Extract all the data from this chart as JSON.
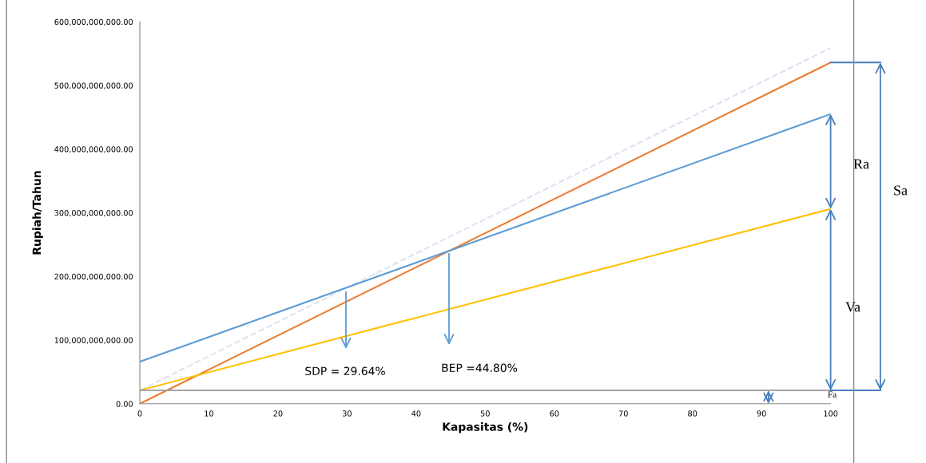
{
  "chart_data": {
    "type": "line",
    "xlabel": "Kapasitas (%)",
    "ylabel": "Rupiah/Tahun",
    "x": [
      0,
      100
    ],
    "series": [
      {
        "color": "#dae3f3",
        "values": [
          21000000000,
          559000000000
        ],
        "line_style": "dashed"
      },
      {
        "color": "#ed7d31",
        "values": [
          0,
          536000000000
        ]
      },
      {
        "color": "#5b9bd5",
        "values": [
          66000000000,
          455000000000
        ]
      },
      {
        "color": "#ffc000",
        "values": [
          21000000000,
          306000000000
        ]
      },
      {
        "color": "#a5a5a5",
        "values": [
          21000000000,
          21000000000
        ]
      }
    ],
    "xlim": [
      0,
      100
    ],
    "xticks": [
      0,
      10,
      20,
      30,
      40,
      50,
      60,
      70,
      80,
      90,
      100
    ],
    "ylim": [
      0,
      600000000000
    ],
    "yticks": [
      {
        "value": 0,
        "label": "0.00"
      },
      {
        "value": 100000000000,
        "label": "100,000,000,000.00"
      },
      {
        "value": 200000000000,
        "label": "200,000,000,000.00"
      },
      {
        "value": 300000000000,
        "label": "300,000,000,000.00"
      },
      {
        "value": 400000000000,
        "label": "400,000,000,000.00"
      },
      {
        "value": 500000000000,
        "label": "500,000,000,000.00"
      },
      {
        "value": 600000000000,
        "label": "600,000,000,000.00"
      }
    ],
    "annotations": [
      "SDP = 29.64%",
      "BEP =44.80%",
      "Ra",
      "Va",
      "Sa",
      "Fa"
    ],
    "grid": false,
    "legend": false,
    "marker": "none",
    "line_style": "solid"
  }
}
